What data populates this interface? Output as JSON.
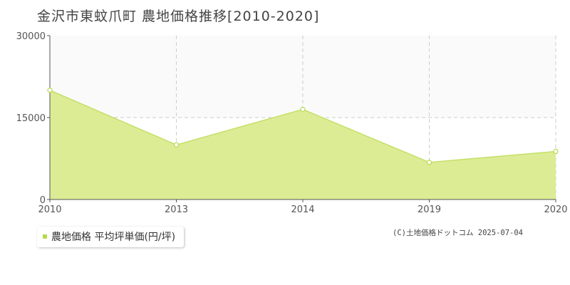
{
  "title": "金沢市東蚊爪町 農地価格推移[2010-2020]",
  "legend": {
    "label": "農地価格 平均坪単価(円/坪)"
  },
  "copyright": "(C)土地価格ドットコム 2025-07-04",
  "colors": {
    "area_fill": "#dcec94",
    "line": "#c3e06a",
    "marker": "#b7d94c",
    "band": "#fafafa",
    "grid": "#cccccc"
  },
  "chart_data": {
    "type": "area",
    "title": "金沢市東蚊爪町 農地価格推移[2010-2020]",
    "xlabel": "",
    "ylabel": "",
    "x": [
      "2010",
      "2013",
      "2014",
      "2019",
      "2020"
    ],
    "series": [
      {
        "name": "農地価格 平均坪単価(円/坪)",
        "values": [
          20000,
          10000,
          16500,
          6800,
          8800
        ]
      }
    ],
    "ylim": [
      0,
      30000
    ],
    "yticks": [
      "0",
      "15000",
      "30000"
    ],
    "grid": true,
    "legend_position": "bottom-left"
  }
}
